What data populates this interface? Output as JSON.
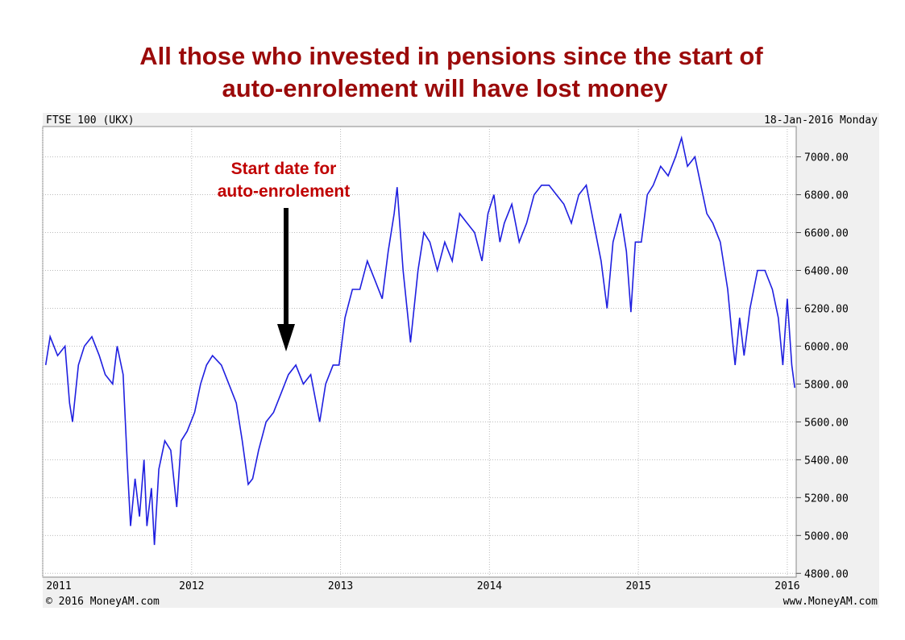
{
  "chart_data": {
    "type": "line",
    "title": "All those who invested in pensions since the start of",
    "title_line2": "auto-enrolement will have lost money",
    "chart_label": "FTSE 100 (UKX)",
    "date_label": "18-Jan-2016 Monday",
    "annotation": "Start date for",
    "annotation_line2": "auto-enrolement",
    "credit": "© 2016 MoneyAM.com",
    "source": "www.MoneyAM.com",
    "grid": true,
    "xlim": [
      2011,
      2016.06
    ],
    "xticks": [
      2011,
      2012,
      2013,
      2014,
      2015,
      2016
    ],
    "ylim": [
      4780,
      7160
    ],
    "yticks": [
      {
        "value": 4800,
        "label": "4800.00"
      },
      {
        "value": 5000,
        "label": "5000.00"
      },
      {
        "value": 5200,
        "label": "5200.00"
      },
      {
        "value": 5400,
        "label": "5400.00"
      },
      {
        "value": 5600,
        "label": "5600.00"
      },
      {
        "value": 5800,
        "label": "5800.00"
      },
      {
        "value": 6000,
        "label": "6000.00"
      },
      {
        "value": 6200,
        "label": "6200.00"
      },
      {
        "value": 6400,
        "label": "6400.00"
      },
      {
        "value": 6600,
        "label": "6600.00"
      },
      {
        "value": 6800,
        "label": "6800.00"
      },
      {
        "value": 7000,
        "label": "7000.00"
      }
    ],
    "series": [
      {
        "name": "FTSE 100",
        "color": "#1f1fe0",
        "x": [
          2011.02,
          2011.05,
          2011.1,
          2011.15,
          2011.18,
          2011.2,
          2011.24,
          2011.28,
          2011.33,
          2011.38,
          2011.42,
          2011.47,
          2011.5,
          2011.54,
          2011.57,
          2011.59,
          2011.62,
          2011.65,
          2011.68,
          2011.7,
          2011.73,
          2011.75,
          2011.78,
          2011.82,
          2011.86,
          2011.9,
          2011.93,
          2011.97,
          2012.02,
          2012.06,
          2012.1,
          2012.14,
          2012.2,
          2012.25,
          2012.3,
          2012.34,
          2012.38,
          2012.41,
          2012.45,
          2012.5,
          2012.55,
          2012.6,
          2012.65,
          2012.7,
          2012.75,
          2012.8,
          2012.86,
          2012.9,
          2012.95,
          2012.99,
          2013.03,
          2013.08,
          2013.13,
          2013.18,
          2013.23,
          2013.28,
          2013.32,
          2013.36,
          2013.38,
          2013.42,
          2013.47,
          2013.52,
          2013.56,
          2013.6,
          2013.65,
          2013.7,
          2013.75,
          2013.8,
          2013.85,
          2013.9,
          2013.95,
          2013.99,
          2014.03,
          2014.07,
          2014.1,
          2014.15,
          2014.2,
          2014.25,
          2014.3,
          2014.35,
          2014.4,
          2014.45,
          2014.5,
          2014.55,
          2014.6,
          2014.65,
          2014.7,
          2014.75,
          2014.79,
          2014.83,
          2014.88,
          2014.92,
          2014.95,
          2014.98,
          2015.02,
          2015.06,
          2015.1,
          2015.15,
          2015.2,
          2015.25,
          2015.29,
          2015.33,
          2015.38,
          2015.42,
          2015.46,
          2015.5,
          2015.55,
          2015.6,
          2015.63,
          2015.65,
          2015.68,
          2015.71,
          2015.75,
          2015.8,
          2015.85,
          2015.9,
          2015.94,
          2015.97,
          2016.0,
          2016.03,
          2016.05
        ],
        "values": [
          5900,
          6050,
          5950,
          6000,
          5700,
          5600,
          5900,
          6000,
          6050,
          5950,
          5850,
          5800,
          6000,
          5850,
          5350,
          5050,
          5300,
          5100,
          5400,
          5050,
          5250,
          4950,
          5350,
          5500,
          5450,
          5150,
          5500,
          5550,
          5650,
          5800,
          5900,
          5950,
          5900,
          5800,
          5700,
          5500,
          5270,
          5300,
          5450,
          5600,
          5650,
          5750,
          5850,
          5900,
          5800,
          5850,
          5600,
          5800,
          5900,
          5900,
          6150,
          6300,
          6300,
          6450,
          6350,
          6250,
          6500,
          6700,
          6840,
          6400,
          6020,
          6400,
          6600,
          6550,
          6400,
          6550,
          6450,
          6700,
          6650,
          6600,
          6450,
          6700,
          6800,
          6550,
          6650,
          6750,
          6550,
          6650,
          6800,
          6850,
          6850,
          6800,
          6750,
          6650,
          6800,
          6850,
          6650,
          6450,
          6200,
          6550,
          6700,
          6500,
          6180,
          6550,
          6550,
          6800,
          6850,
          6950,
          6900,
          7000,
          7100,
          6950,
          7000,
          6850,
          6700,
          6650,
          6550,
          6300,
          6050,
          5900,
          6150,
          5950,
          6200,
          6400,
          6400,
          6300,
          6150,
          5900,
          6250,
          5900,
          5780
        ]
      }
    ]
  }
}
